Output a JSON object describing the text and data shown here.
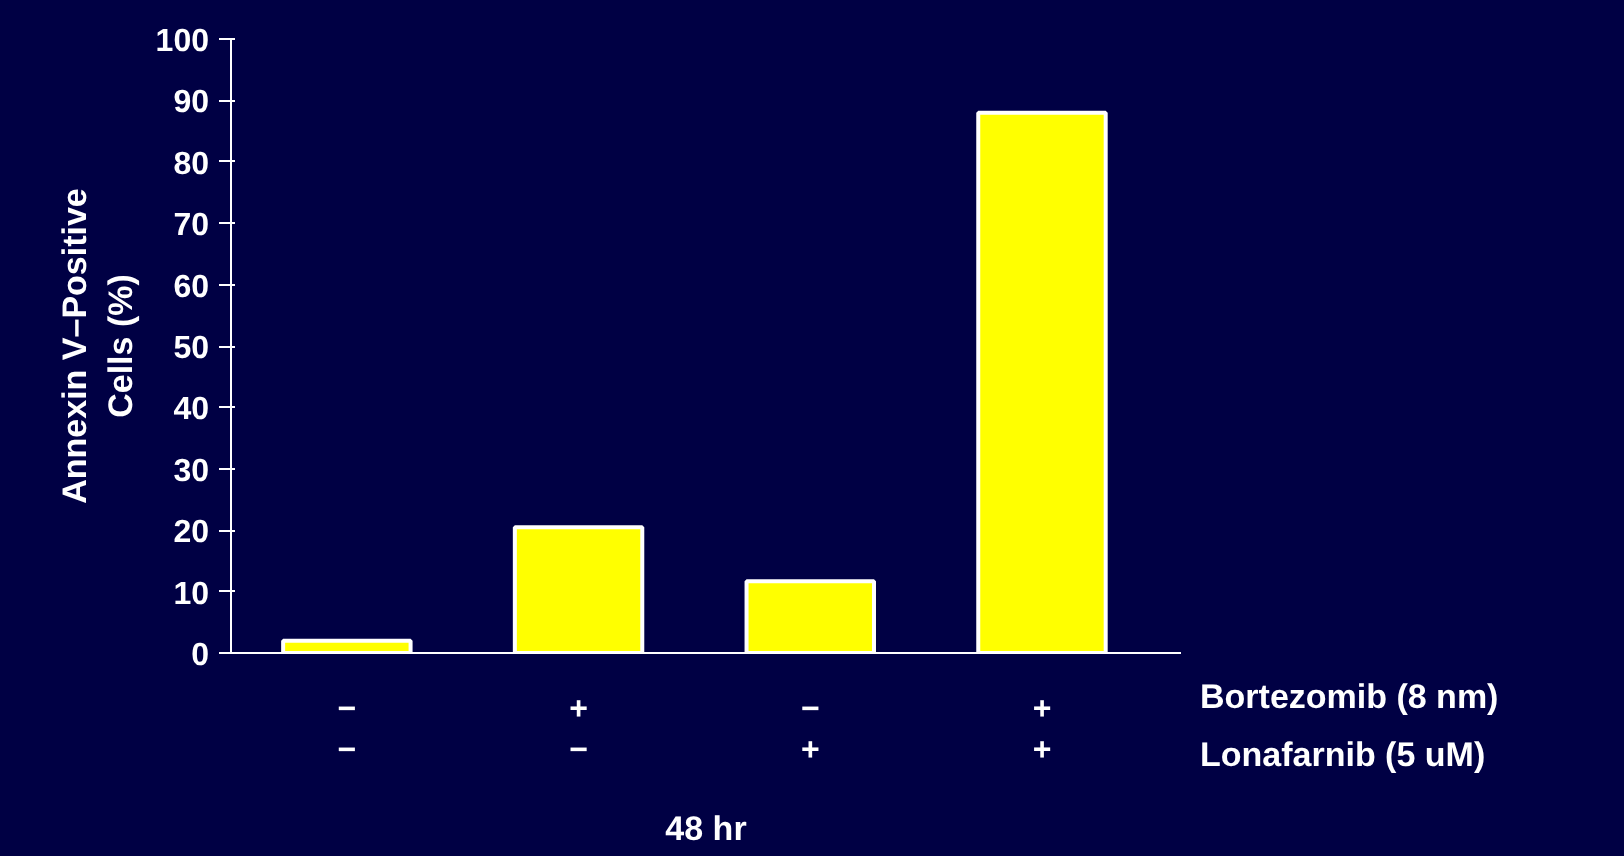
{
  "chart_data": {
    "type": "bar",
    "categories": [
      "−\n−",
      "+\n−",
      "−\n+",
      "+\n+"
    ],
    "values": [
      2,
      20.5,
      11.7,
      88
    ],
    "color": "#ffff00",
    "ylim": [
      0,
      100
    ],
    "yticks": [
      0,
      10,
      20,
      30,
      40,
      50,
      60,
      70,
      80,
      90,
      100
    ],
    "ylabel": "Annexin V–Positive\nCells (%)",
    "xlabel": "48 hr",
    "annotations": [
      "Bortezomib (8 nm)",
      "Lonafarnib (5 uM)"
    ],
    "grid": false
  }
}
